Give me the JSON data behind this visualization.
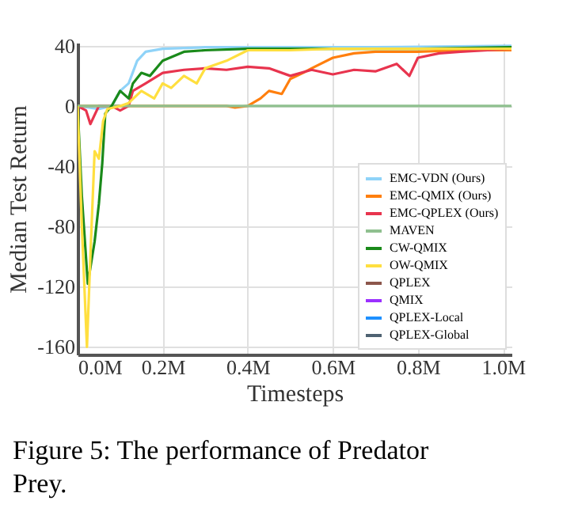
{
  "chart_data": {
    "type": "line",
    "xlabel": "Timesteps",
    "ylabel": "Median Test Return",
    "annotations": [
      "Figure 5: The performance of Predator Prey."
    ],
    "xlim": [
      0,
      1.02
    ],
    "ylim": [
      -165,
      42
    ],
    "xticks": [
      {
        "value": 0,
        "label": "0.0M"
      },
      {
        "value": 0.2,
        "label": "0.2M"
      },
      {
        "value": 0.4,
        "label": "0.4M"
      },
      {
        "value": 0.6,
        "label": "0.6M"
      },
      {
        "value": 0.8,
        "label": "0.8M"
      },
      {
        "value": 1.0,
        "label": "1.0M"
      }
    ],
    "yticks": [
      -160,
      -120,
      -80,
      -40,
      0,
      40
    ],
    "grid": true,
    "legend": "bottom right",
    "series": [
      {
        "name": "EMC-VDN (Ours)",
        "color": "#8fd3f8",
        "x": [
          0,
          0.05,
          0.08,
          0.1,
          0.12,
          0.14,
          0.16,
          0.2,
          0.3,
          0.5,
          0.7,
          1.02
        ],
        "values": [
          0,
          -2,
          0,
          10,
          15,
          30,
          36,
          38,
          39,
          39,
          39,
          40
        ]
      },
      {
        "name": "EMC-QMIX (Ours)",
        "color": "#ff7f0e",
        "x": [
          0,
          0.1,
          0.2,
          0.35,
          0.37,
          0.4,
          0.43,
          0.45,
          0.48,
          0.5,
          0.53,
          0.55,
          0.6,
          0.65,
          0.7,
          0.8,
          0.9,
          1.02
        ],
        "values": [
          0,
          0,
          0,
          0,
          -1,
          0,
          5,
          10,
          8,
          18,
          22,
          25,
          32,
          35,
          36,
          36,
          37,
          37
        ]
      },
      {
        "name": "EMC-QPLEX (Ours)",
        "color": "#e8344e",
        "x": [
          0,
          0.02,
          0.03,
          0.05,
          0.08,
          0.1,
          0.12,
          0.13,
          0.16,
          0.2,
          0.25,
          0.3,
          0.35,
          0.4,
          0.45,
          0.5,
          0.55,
          0.6,
          0.65,
          0.7,
          0.75,
          0.78,
          0.8,
          0.85,
          0.9,
          1.02
        ],
        "values": [
          0,
          -3,
          -12,
          0,
          0,
          -3,
          0,
          10,
          15,
          22,
          24,
          25,
          24,
          26,
          25,
          20,
          24,
          21,
          24,
          23,
          28,
          20,
          32,
          35,
          36,
          38
        ]
      },
      {
        "name": "MAVEN",
        "color": "#8fc08f",
        "x": [
          0,
          1.02
        ],
        "values": [
          0,
          0
        ]
      },
      {
        "name": "CW-QMIX",
        "color": "#1a8a1a",
        "x": [
          0,
          0.01,
          0.024,
          0.04,
          0.05,
          0.058,
          0.065,
          0.08,
          0.1,
          0.12,
          0.13,
          0.15,
          0.17,
          0.2,
          0.25,
          0.3,
          0.4,
          0.6,
          0.8,
          1.02
        ],
        "values": [
          0,
          -60,
          -118,
          -90,
          -65,
          -38,
          -5,
          0,
          10,
          5,
          15,
          22,
          20,
          30,
          36,
          37,
          38,
          38,
          38,
          39
        ]
      },
      {
        "name": "OW-QMIX",
        "color": "#ffdf3f",
        "x": [
          0,
          0.01,
          0.022,
          0.03,
          0.04,
          0.05,
          0.06,
          0.07,
          0.1,
          0.12,
          0.15,
          0.18,
          0.2,
          0.22,
          0.25,
          0.28,
          0.3,
          0.35,
          0.4,
          0.5,
          0.6,
          1.02
        ],
        "values": [
          0,
          -80,
          -160,
          -100,
          -30,
          -35,
          -10,
          -2,
          0,
          2,
          10,
          5,
          15,
          12,
          20,
          15,
          25,
          30,
          37,
          37,
          38,
          38
        ]
      },
      {
        "name": "QPLEX",
        "color": "#8c564b"
      },
      {
        "name": "QMIX",
        "color": "#9b30ff"
      },
      {
        "name": "QPLEX-Local",
        "color": "#1e90ff"
      },
      {
        "name": "QPLEX-Global",
        "color": "#4f6272"
      }
    ]
  }
}
